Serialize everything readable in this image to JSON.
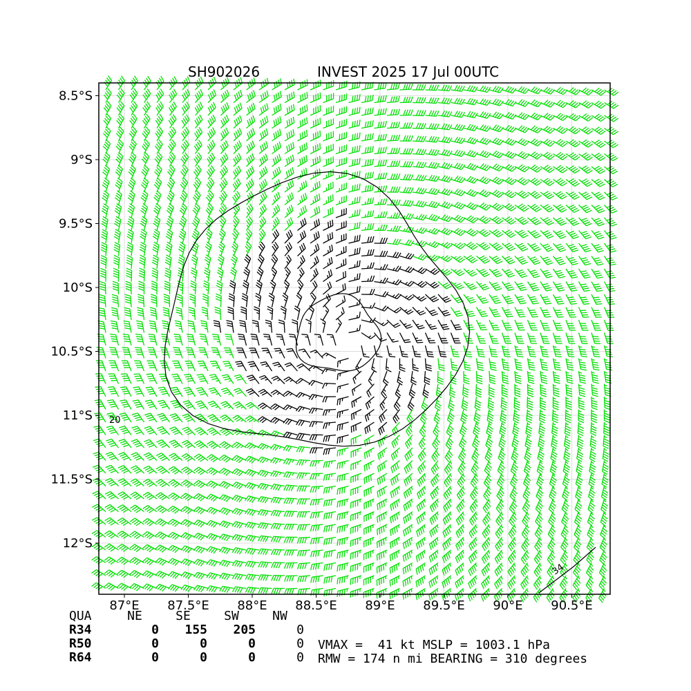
{
  "title": {
    "id": "SH902026",
    "desc": "INVEST 2025 17 Jul 00UTC"
  },
  "map": {
    "lon_range": [
      86.8,
      90.8
    ],
    "lat_range": [
      -12.4,
      -8.4
    ],
    "lon_ticks": [
      "87°E",
      "87.5°E",
      "88°E",
      "88.5°E",
      "89°E",
      "89.5°E",
      "90°E",
      "90.5°E"
    ],
    "lon_tick_values": [
      87,
      87.5,
      88,
      88.5,
      89,
      89.5,
      90,
      90.5
    ],
    "lat_ticks": [
      "8.5°S",
      "9°S",
      "9.5°S",
      "10°S",
      "10.5°S",
      "11°S",
      "11.5°S",
      "12°S"
    ],
    "lat_tick_values": [
      -8.5,
      -9,
      -9.5,
      -10,
      -10.5,
      -11,
      -11.5,
      -12
    ],
    "grid": true,
    "center": {
      "lon": 88.75,
      "lat": -10.45
    },
    "contour_labels": [
      "20",
      "34"
    ],
    "colors": {
      "below34": "#000000",
      "r34": "#00e000",
      "r50": "#f0b400"
    }
  },
  "table": {
    "header": [
      "QUA",
      "NE",
      "SE",
      "SW",
      "NW"
    ],
    "rows": [
      {
        "label": "R34",
        "values": [
          "0",
          "155",
          "205",
          "0"
        ]
      },
      {
        "label": "R50",
        "values": [
          "0",
          "0",
          "0",
          "0"
        ]
      },
      {
        "label": "R64",
        "values": [
          "0",
          "0",
          "0",
          "0"
        ]
      }
    ]
  },
  "info": {
    "line1": "VMAX =  41 kt MSLP = 1003.1 hPa",
    "line2": "RMW = 174 n mi BEARING = 310 degrees"
  }
}
